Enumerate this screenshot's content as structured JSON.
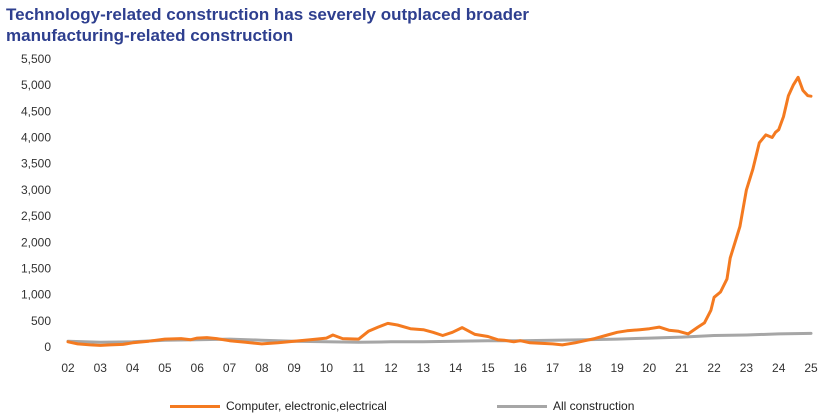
{
  "chart_data": {
    "type": "line",
    "title": "Technology-related construction has severely outplaced broader manufacturing-related construction",
    "xlabel": "",
    "ylabel": "",
    "ylim": [
      0,
      5500
    ],
    "y_ticks": [
      "0",
      "500",
      "1,000",
      "1,500",
      "2,000",
      "2,500",
      "3,000",
      "3,500",
      "4,000",
      "4,500",
      "5,000",
      "5,500"
    ],
    "y_tick_values": [
      0,
      500,
      1000,
      1500,
      2000,
      2500,
      3000,
      3500,
      4000,
      4500,
      5000,
      5500
    ],
    "xlim": [
      2002,
      2025
    ],
    "x_ticks": [
      "02",
      "03",
      "04",
      "05",
      "06",
      "07",
      "08",
      "09",
      "10",
      "11",
      "12",
      "13",
      "14",
      "15",
      "16",
      "17",
      "18",
      "19",
      "20",
      "21",
      "22",
      "23",
      "24",
      "25"
    ],
    "x_tick_values": [
      2002,
      2003,
      2004,
      2005,
      2006,
      2007,
      2008,
      2009,
      2010,
      2011,
      2012,
      2013,
      2014,
      2015,
      2016,
      2017,
      2018,
      2019,
      2020,
      2021,
      2022,
      2023,
      2024,
      2025
    ],
    "grid": false,
    "legend_position": "bottom",
    "series": [
      {
        "name": "Computer, electronic,electrical",
        "color": "#f47a20",
        "x": [
          2002.0,
          2002.3,
          2002.7,
          2003.0,
          2003.3,
          2003.7,
          2004.0,
          2004.5,
          2005.0,
          2005.5,
          2005.8,
          2006.0,
          2006.3,
          2006.6,
          2007.0,
          2007.5,
          2008.0,
          2008.5,
          2009.0,
          2009.5,
          2010.0,
          2010.2,
          2010.5,
          2011.0,
          2011.3,
          2011.6,
          2011.9,
          2012.2,
          2012.6,
          2013.0,
          2013.3,
          2013.6,
          2013.9,
          2014.2,
          2014.6,
          2015.0,
          2015.3,
          2015.5,
          2015.8,
          2016.0,
          2016.3,
          2016.6,
          2017.0,
          2017.3,
          2017.7,
          2018.0,
          2018.3,
          2018.7,
          2019.0,
          2019.3,
          2019.7,
          2020.0,
          2020.3,
          2020.6,
          2020.9,
          2021.2,
          2021.5,
          2021.7,
          2021.9,
          2022.0,
          2022.2,
          2022.4,
          2022.5,
          2022.7,
          2022.8,
          2023.0,
          2023.2,
          2023.4,
          2023.6,
          2023.8,
          2023.9,
          2024.0,
          2024.15,
          2024.3,
          2024.45,
          2024.6,
          2024.75,
          2024.9,
          2025.0
        ],
        "values": [
          100,
          60,
          40,
          30,
          40,
          50,
          80,
          110,
          150,
          160,
          140,
          170,
          180,
          160,
          120,
          90,
          60,
          80,
          110,
          140,
          170,
          230,
          160,
          150,
          300,
          380,
          450,
          420,
          350,
          330,
          280,
          220,
          280,
          370,
          240,
          200,
          140,
          130,
          100,
          120,
          80,
          70,
          60,
          40,
          80,
          120,
          160,
          230,
          280,
          310,
          330,
          350,
          380,
          320,
          300,
          250,
          380,
          460,
          700,
          950,
          1050,
          1300,
          1700,
          2100,
          2300,
          3000,
          3400,
          3900,
          4050,
          4000,
          4100,
          4150,
          4400,
          4800,
          5000,
          5150,
          4900,
          4800,
          4790
        ]
      },
      {
        "name": "All construction",
        "color": "#a6a6a6",
        "x": [
          2002.0,
          2003.0,
          2004.0,
          2005.0,
          2006.0,
          2007.0,
          2008.0,
          2009.0,
          2010.0,
          2011.0,
          2012.0,
          2013.0,
          2014.0,
          2015.0,
          2016.0,
          2017.0,
          2018.0,
          2019.0,
          2020.0,
          2021.0,
          2022.0,
          2023.0,
          2024.0,
          2025.0
        ],
        "values": [
          110,
          90,
          100,
          130,
          140,
          150,
          130,
          110,
          100,
          90,
          100,
          100,
          110,
          120,
          120,
          130,
          140,
          150,
          170,
          190,
          220,
          230,
          250,
          260
        ]
      }
    ]
  }
}
